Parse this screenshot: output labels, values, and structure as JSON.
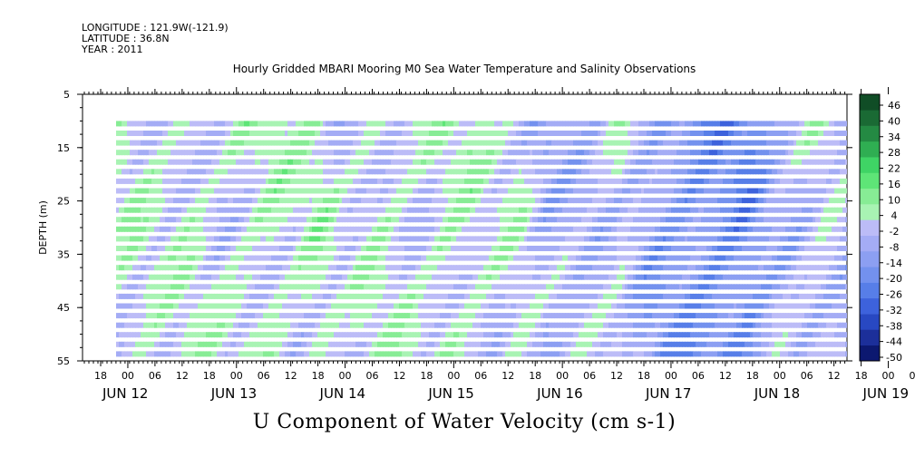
{
  "header": {
    "longitude": "LONGITUDE : 121.9W(-121.9)",
    "latitude": "LATITUDE : 36.8N",
    "year": "YEAR : 2011"
  },
  "chart_data": {
    "type": "heatmap",
    "title": "Hourly Gridded MBARI Mooring M0 Sea Water Temperature and Salinity Observations",
    "xlabel": "U Component of Water Velocity (cm s-1)",
    "ylabel": "DEPTH (m)",
    "ylim": [
      5,
      55
    ],
    "y_inverted": true,
    "y_ticks": [
      5,
      15,
      25,
      35,
      45,
      55
    ],
    "x_hour_ticks": [
      "18",
      "00",
      "06",
      "12",
      "18",
      "00",
      "06",
      "12",
      "18",
      "00",
      "06",
      "12",
      "18",
      "00",
      "06",
      "12",
      "18",
      "00",
      "06",
      "12",
      "18",
      "00",
      "06",
      "12",
      "18",
      "00",
      "06",
      "12",
      "18",
      "00",
      "06",
      "12"
    ],
    "x_date_labels": [
      "JUN 12",
      "JUN 13",
      "JUN 14",
      "JUN 15",
      "JUN 16",
      "JUN 17",
      "JUN 18",
      "JUN 19"
    ],
    "data_depth_range": [
      10,
      55
    ],
    "colorbar": {
      "levels": [
        -50,
        -44,
        -38,
        -32,
        -26,
        -20,
        -14,
        -8,
        -2,
        4,
        10,
        16,
        22,
        28,
        34,
        40,
        46
      ],
      "tick_labels": [
        "46",
        "40",
        "34",
        "28",
        "22",
        "16",
        "10",
        "4",
        "-2",
        "-8",
        "-14",
        "-20",
        "-26",
        "-32",
        "-38",
        "-44",
        "-50"
      ],
      "colors_low_to_high": [
        "#0c1870",
        "#1c2f9a",
        "#2848c2",
        "#3d62dc",
        "#577ee8",
        "#7391ee",
        "#8c9ff2",
        "#a4acf5",
        "#bcbcf7",
        "#a8f3b3",
        "#87ec95",
        "#5ee577",
        "#3fd465",
        "#2fae52",
        "#248a43",
        "#1a6a34",
        "#104d26"
      ]
    },
    "u_profile_by_time": [
      {
        "time": "JUN 12 06",
        "u": 4
      },
      {
        "time": "JUN 12 12",
        "u": 3
      },
      {
        "time": "JUN 12 18",
        "u": 2
      },
      {
        "time": "JUN 13 00",
        "u": 5
      },
      {
        "time": "JUN 13 06",
        "u": 1
      },
      {
        "time": "JUN 13 12",
        "u": 4
      },
      {
        "time": "JUN 13 18",
        "u": 6
      },
      {
        "time": "JUN 14 00",
        "u": 3
      },
      {
        "time": "JUN 14 06",
        "u": 7
      },
      {
        "time": "JUN 14 12",
        "u": -2
      },
      {
        "time": "JUN 14 18",
        "u": 5
      },
      {
        "time": "JUN 15 00",
        "u": 4
      },
      {
        "time": "JUN 15 06",
        "u": 2
      },
      {
        "time": "JUN 15 12",
        "u": 6
      },
      {
        "time": "JUN 15 18",
        "u": 5
      },
      {
        "time": "JUN 16 00",
        "u": 1
      },
      {
        "time": "JUN 16 06",
        "u": 3
      },
      {
        "time": "JUN 16 12",
        "u": -8
      },
      {
        "time": "JUN 16 18",
        "u": -4
      },
      {
        "time": "JUN 17 00",
        "u": -3
      },
      {
        "time": "JUN 17 06",
        "u": 2
      },
      {
        "time": "JUN 17 12",
        "u": -10
      },
      {
        "time": "JUN 17 18",
        "u": -14
      },
      {
        "time": "JUN 18 00",
        "u": -16
      },
      {
        "time": "JUN 18 06",
        "u": -18
      },
      {
        "time": "JUN 18 12",
        "u": -19
      },
      {
        "time": "JUN 18 18",
        "u": -6
      },
      {
        "time": "JUN 19 00",
        "u": -3
      },
      {
        "time": "JUN 19 06",
        "u": 2
      },
      {
        "time": "JUN 19 12",
        "u": -5
      }
    ]
  }
}
